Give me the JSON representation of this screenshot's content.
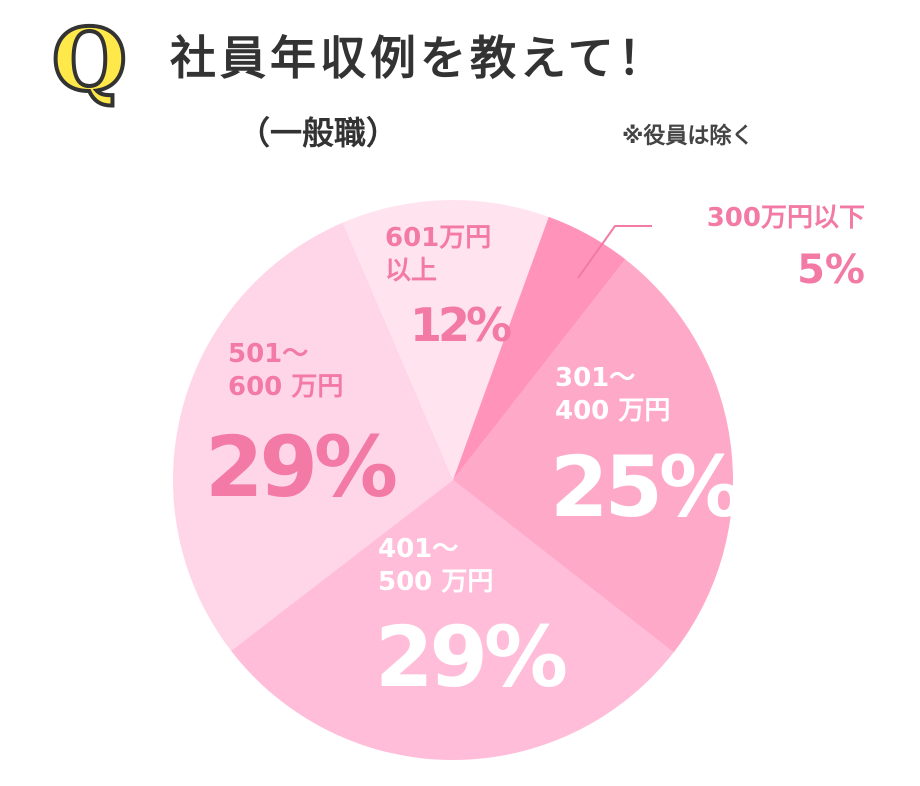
{
  "badge": "Q",
  "chart_data": {
    "type": "pie",
    "title": "社員年収例を教えて！",
    "subtitle": "（一般職）",
    "note": "※役員は除く",
    "categories": [
      "300万円以下",
      "301～\n400 万円",
      "401～\n500 万円",
      "501～\n600 万円",
      "601万円\n以上"
    ],
    "values": [
      5,
      25,
      29,
      29,
      12
    ],
    "value_labels": [
      "5%",
      "25%",
      "29%",
      "29%",
      "12%"
    ],
    "colors": [
      "#ff93b9",
      "#ffa9c9",
      "#ffbdd9",
      "#ffd6e7",
      "#ffe4ef"
    ],
    "label_colors": [
      "#f27aa4",
      "#ffffff",
      "#ffffff",
      "#f27aa4",
      "#f27aa4"
    ]
  }
}
